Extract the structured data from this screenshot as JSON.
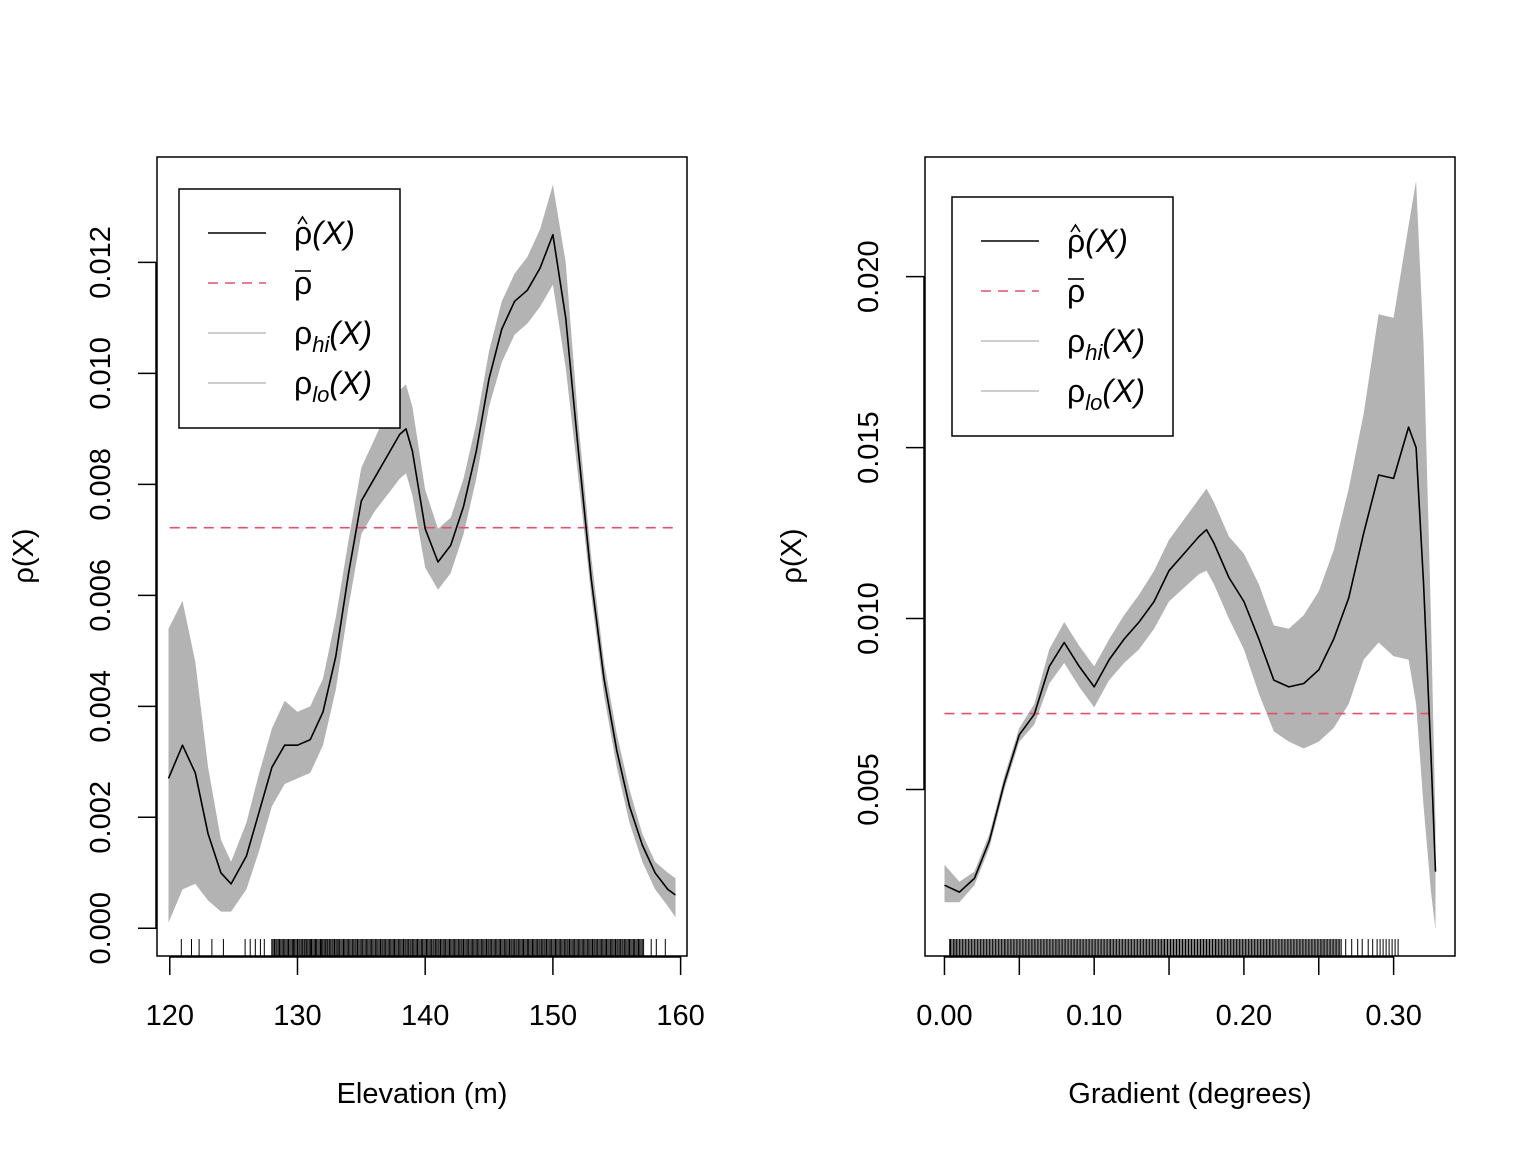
{
  "chart_data": [
    {
      "type": "line",
      "xlabel": "Elevation (m)",
      "ylabel": "ρ(X)",
      "xlim": [
        119,
        160.5
      ],
      "ylim": [
        -0.0005,
        0.0139
      ],
      "xticks": [
        120,
        130,
        140,
        150,
        160
      ],
      "xtick_labels": [
        "120",
        "130",
        "140",
        "150",
        "160"
      ],
      "yticks": [
        0,
        0.002,
        0.004,
        0.006,
        0.008,
        0.01,
        0.012
      ],
      "ytick_labels": [
        "0.000",
        "0.002",
        "0.004",
        "0.006",
        "0.008",
        "0.010",
        "0.012"
      ],
      "legend": {
        "placement": "top-left",
        "entries": [
          {
            "label": "ρ̂(X)",
            "base": "ρ",
            "hat": true,
            "sub": "",
            "arg": "(X)",
            "style": "solid",
            "color": "#000000"
          },
          {
            "label": "ρ̄",
            "base": "ρ",
            "bar": true,
            "sub": "",
            "arg": "",
            "style": "dashed",
            "color": "#DF536B"
          },
          {
            "label": "ρhi(X)",
            "base": "ρ",
            "sub": "hi",
            "arg": "(X)",
            "style": "solid",
            "color": "#BEBEBE"
          },
          {
            "label": "ρlo(X)",
            "base": "ρ",
            "sub": "lo",
            "arg": "(X)",
            "style": "solid",
            "color": "#BEBEBE"
          }
        ]
      },
      "reference_line": {
        "name": "ρ̄",
        "y": 0.00722,
        "x_range": [
          120,
          159.5
        ],
        "color": "#DF536B"
      },
      "band_color": "#B3B3B3",
      "series": [
        {
          "name": "ρ̂(X)",
          "color": "#000000",
          "x": [
            119.9,
            121,
            122,
            123,
            124,
            124.8,
            126,
            127,
            128,
            129,
            130,
            131,
            132,
            133,
            134,
            135,
            136,
            137,
            138,
            138.5,
            139,
            140,
            141,
            142,
            143,
            144,
            145,
            146,
            147,
            148,
            149,
            150,
            151,
            152,
            153,
            154,
            155,
            156,
            157,
            158,
            159,
            159.6
          ],
          "y": [
            0.0027,
            0.0033,
            0.0028,
            0.0017,
            0.001,
            0.0008,
            0.0013,
            0.0021,
            0.0029,
            0.0033,
            0.0033,
            0.0034,
            0.0039,
            0.0049,
            0.0064,
            0.0077,
            0.0081,
            0.0085,
            0.0089,
            0.009,
            0.0086,
            0.0072,
            0.0066,
            0.0069,
            0.0076,
            0.0086,
            0.0099,
            0.0108,
            0.0113,
            0.0115,
            0.0119,
            0.0125,
            0.011,
            0.0086,
            0.0063,
            0.0045,
            0.0032,
            0.0022,
            0.0015,
            0.001,
            0.0007,
            0.0006
          ]
        },
        {
          "name": "ρhi(X)",
          "color": "#B3B3B3",
          "x": [
            119.9,
            121,
            122,
            123,
            124,
            124.8,
            126,
            127,
            128,
            129,
            130,
            131,
            132,
            133,
            134,
            135,
            136,
            137,
            138,
            138.5,
            139,
            140,
            141,
            142,
            143,
            144,
            145,
            146,
            147,
            148,
            149,
            150,
            151,
            152,
            153,
            154,
            155,
            156,
            157,
            158,
            159,
            159.6
          ],
          "y": [
            0.0054,
            0.0059,
            0.0048,
            0.0029,
            0.0016,
            0.0012,
            0.0019,
            0.0028,
            0.0036,
            0.0041,
            0.0039,
            0.004,
            0.0045,
            0.0056,
            0.007,
            0.0083,
            0.0088,
            0.0093,
            0.0097,
            0.0098,
            0.0094,
            0.0079,
            0.0072,
            0.0074,
            0.0081,
            0.0091,
            0.0104,
            0.0113,
            0.0118,
            0.0121,
            0.0126,
            0.0134,
            0.012,
            0.0091,
            0.0067,
            0.0048,
            0.0035,
            0.0025,
            0.0017,
            0.0012,
            0.001,
            0.0009
          ]
        },
        {
          "name": "ρlo(X)",
          "color": "#B3B3B3",
          "x": [
            119.9,
            121,
            122,
            123,
            124,
            124.8,
            126,
            127,
            128,
            129,
            130,
            131,
            132,
            133,
            134,
            135,
            136,
            137,
            138,
            138.5,
            139,
            140,
            141,
            142,
            143,
            144,
            145,
            146,
            147,
            148,
            149,
            150,
            151,
            152,
            153,
            154,
            155,
            156,
            157,
            158,
            159,
            159.6
          ],
          "y": [
            0.0001,
            0.0007,
            0.0008,
            0.0005,
            0.0003,
            0.0003,
            0.0007,
            0.0014,
            0.0022,
            0.0026,
            0.0027,
            0.0028,
            0.0033,
            0.0043,
            0.0058,
            0.0071,
            0.0075,
            0.0078,
            0.0081,
            0.0082,
            0.0078,
            0.0065,
            0.0061,
            0.0064,
            0.0071,
            0.0081,
            0.0094,
            0.0102,
            0.0107,
            0.0109,
            0.0112,
            0.0116,
            0.0101,
            0.0081,
            0.006,
            0.0042,
            0.0029,
            0.0019,
            0.0012,
            0.0007,
            0.0004,
            0.0002
          ]
        }
      ],
      "rug": {
        "sparse_x": [
          120.9,
          121.7,
          122.3,
          123.3,
          124.2,
          125.9,
          126.3,
          126.7,
          127.1,
          127.4,
          128.0,
          128.6,
          129.1,
          129.3,
          129.7,
          130.2,
          130.6,
          131.0,
          131.4,
          131.9,
          132.3,
          132.7,
          133.1,
          157.1,
          157.7,
          158.1,
          158.8
        ],
        "dense_range": [
          128,
          157
        ],
        "dense_step": 0.1
      }
    },
    {
      "type": "line",
      "xlabel": "Gradient (degrees)",
      "ylabel": "ρ(X)",
      "xlim": [
        -0.013,
        0.341
      ],
      "ylim": [
        0.00013,
        0.0235
      ],
      "xticks": [
        0.0,
        0.05,
        0.1,
        0.15,
        0.2,
        0.25,
        0.3
      ],
      "xtick_labels": [
        "0.00",
        "",
        "0.10",
        "",
        "0.20",
        "",
        "0.30"
      ],
      "yticks": [
        0.005,
        0.01,
        0.015,
        0.02
      ],
      "ytick_labels": [
        "0.005",
        "0.010",
        "0.015",
        "0.020"
      ],
      "legend": {
        "placement": "top-left",
        "entries": [
          {
            "label": "ρ̂(X)",
            "base": "ρ",
            "hat": true,
            "sub": "",
            "arg": "(X)",
            "style": "solid",
            "color": "#000000"
          },
          {
            "label": "ρ̄",
            "base": "ρ",
            "bar": true,
            "sub": "",
            "arg": "",
            "style": "dashed",
            "color": "#DF536B"
          },
          {
            "label": "ρhi(X)",
            "base": "ρ",
            "sub": "hi",
            "arg": "(X)",
            "style": "solid",
            "color": "#BEBEBE"
          },
          {
            "label": "ρlo(X)",
            "base": "ρ",
            "sub": "lo",
            "arg": "(X)",
            "style": "solid",
            "color": "#BEBEBE"
          }
        ]
      },
      "reference_line": {
        "name": "ρ̄",
        "y": 0.00722,
        "x_range": [
          0.0,
          0.328
        ],
        "color": "#DF536B"
      },
      "band_color": "#B3B3B3",
      "series": [
        {
          "name": "ρ̂(X)",
          "color": "#000000",
          "x": [
            0.0,
            0.01,
            0.02,
            0.03,
            0.04,
            0.05,
            0.06,
            0.07,
            0.08,
            0.09,
            0.1,
            0.11,
            0.12,
            0.13,
            0.14,
            0.15,
            0.16,
            0.17,
            0.175,
            0.18,
            0.19,
            0.2,
            0.21,
            0.22,
            0.23,
            0.24,
            0.25,
            0.26,
            0.27,
            0.28,
            0.29,
            0.3,
            0.31,
            0.315,
            0.32,
            0.325,
            0.328
          ],
          "y": [
            0.0022,
            0.002,
            0.0024,
            0.0035,
            0.0052,
            0.0066,
            0.0072,
            0.0086,
            0.0093,
            0.0086,
            0.008,
            0.0088,
            0.0094,
            0.0099,
            0.0105,
            0.0114,
            0.0119,
            0.0124,
            0.0126,
            0.0122,
            0.0112,
            0.0105,
            0.0094,
            0.0082,
            0.008,
            0.0081,
            0.0085,
            0.0094,
            0.0106,
            0.0125,
            0.0142,
            0.0141,
            0.0156,
            0.015,
            0.011,
            0.006,
            0.0026
          ]
        },
        {
          "name": "ρhi(X)",
          "color": "#B3B3B3",
          "x": [
            0.0,
            0.01,
            0.02,
            0.03,
            0.04,
            0.05,
            0.06,
            0.07,
            0.08,
            0.09,
            0.1,
            0.11,
            0.12,
            0.13,
            0.14,
            0.15,
            0.16,
            0.17,
            0.175,
            0.18,
            0.19,
            0.2,
            0.21,
            0.22,
            0.23,
            0.24,
            0.25,
            0.26,
            0.27,
            0.28,
            0.29,
            0.3,
            0.31,
            0.315,
            0.32,
            0.325,
            0.328
          ],
          "y": [
            0.0028,
            0.0023,
            0.0026,
            0.0037,
            0.0054,
            0.0068,
            0.0075,
            0.0091,
            0.0099,
            0.0092,
            0.0086,
            0.0094,
            0.0101,
            0.0107,
            0.0114,
            0.0123,
            0.0129,
            0.0135,
            0.0138,
            0.0134,
            0.0124,
            0.0119,
            0.011,
            0.0098,
            0.0097,
            0.0101,
            0.0108,
            0.012,
            0.0138,
            0.016,
            0.0189,
            0.0188,
            0.0215,
            0.0228,
            0.018,
            0.01,
            0.004
          ]
        },
        {
          "name": "ρlo(X)",
          "color": "#B3B3B3",
          "x": [
            0.0,
            0.01,
            0.02,
            0.03,
            0.04,
            0.05,
            0.06,
            0.07,
            0.08,
            0.09,
            0.1,
            0.11,
            0.12,
            0.13,
            0.14,
            0.15,
            0.16,
            0.17,
            0.175,
            0.18,
            0.19,
            0.2,
            0.21,
            0.22,
            0.23,
            0.24,
            0.25,
            0.26,
            0.27,
            0.28,
            0.29,
            0.3,
            0.31,
            0.315,
            0.32,
            0.325,
            0.328
          ],
          "y": [
            0.0017,
            0.0017,
            0.0022,
            0.0033,
            0.005,
            0.0064,
            0.0069,
            0.0081,
            0.0087,
            0.008,
            0.0074,
            0.0082,
            0.0087,
            0.0091,
            0.0097,
            0.0105,
            0.0109,
            0.0113,
            0.0114,
            0.011,
            0.01,
            0.0091,
            0.0078,
            0.0067,
            0.0064,
            0.0062,
            0.0064,
            0.0068,
            0.0075,
            0.0088,
            0.0093,
            0.0089,
            0.0088,
            0.0075,
            0.0045,
            0.002,
            0.0009
          ]
        }
      ],
      "rug": {
        "sparse_x": [
          0.0035,
          0.007,
          0.268,
          0.272,
          0.276,
          0.279,
          0.283,
          0.286,
          0.289,
          0.291,
          0.293,
          0.295,
          0.297,
          0.299,
          0.301,
          0.303
        ],
        "dense_range": [
          0.004,
          0.265
        ],
        "dense_step": 0.001
      }
    }
  ]
}
